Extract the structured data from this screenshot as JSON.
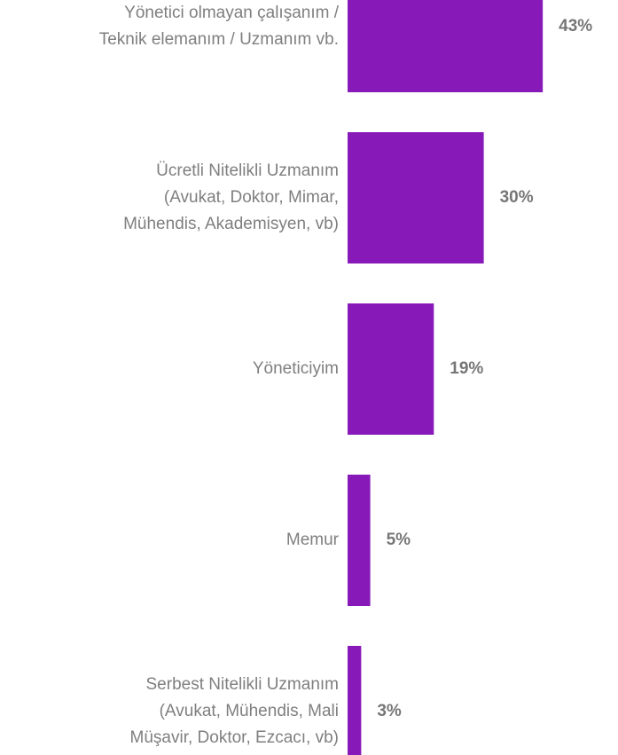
{
  "chart_data": {
    "type": "bar",
    "orientation": "horizontal",
    "categories": [
      "Yönetici olmayan çalışanım /\nTeknik elemanım / Uzmanım vb.",
      "Ücretli Nitelikli Uzmanım\n(Avukat, Doktor, Mimar,\nMühendis, Akademisyen, vb)",
      "Yöneticiyim",
      "Memur",
      "Serbest Nitelikli Uzmanım\n(Avukat, Mühendis, Mali\nMüşavir, Doktor, Ezcacı, vb)"
    ],
    "values": [
      43,
      30,
      19,
      5,
      3
    ],
    "value_labels": [
      "43%",
      "30%",
      "19%",
      "5%",
      "3%"
    ],
    "color": "#8819b9"
  }
}
